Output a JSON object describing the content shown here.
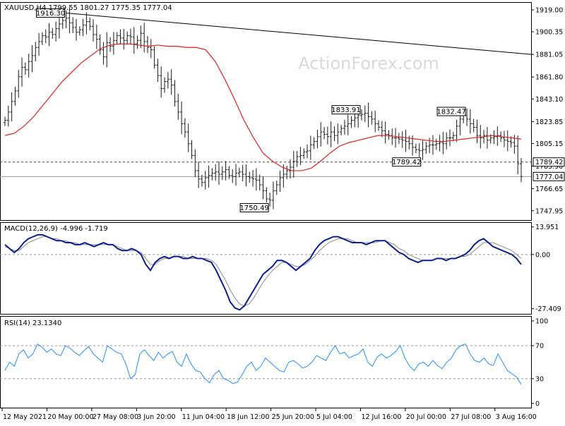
{
  "watermark": "ActionForex.com",
  "colors": {
    "price_bars": "#1a1a1a",
    "sma": "#e02020",
    "macd_line": "#0a1f8f",
    "macd_signal": "#8a8a8a",
    "rsi_line": "#1e90ff",
    "trendline": "#000000",
    "dashed": "#444444",
    "hline": "#9a9a9a",
    "frame": "#000000",
    "grid_dashed": "#999999",
    "watermark": "#d9d9d9"
  },
  "chart_data": [
    {
      "type": "ohlc",
      "panel": "price",
      "title": "XAUUSD,H4  1799.55 1801.27 1775.35 1777.04",
      "symbol": "XAUUSD",
      "timeframe": "H4",
      "last_ohlc": [
        1799.55,
        1801.27,
        1775.35,
        1777.04
      ],
      "ylim": [
        1740.0,
        1925.0
      ],
      "yticks": [
        1919.0,
        1900.35,
        1881.05,
        1861.8,
        1843.1,
        1823.85,
        1805.15,
        1785.9,
        1766.65,
        1747.95
      ],
      "ytick_labels": [
        "1919.00",
        "1900.35",
        "1881.05",
        "1861.80",
        "1843.10",
        "1823.85",
        "1805.15",
        "1785.90",
        "1766.65",
        "1747.95"
      ],
      "x_labels": [
        "12 May 2021",
        "20 May 00:00",
        "27 May 08:00",
        "3 Jun 20:00",
        "11 Jun 04:00",
        "18 Jun 12:00",
        "25 Jun 20:00",
        "5 Jul 04:00",
        "12 Jul 16:00",
        "20 Jul 00:00",
        "27 Jul 08:00",
        "3 Aug 16:00"
      ],
      "closes": [
        1825,
        1832,
        1841,
        1850,
        1862,
        1870,
        1868,
        1875,
        1880,
        1887,
        1892,
        1897,
        1896,
        1900,
        1898,
        1903,
        1907,
        1910,
        1912,
        1908,
        1904,
        1900,
        1902,
        1906,
        1909,
        1905,
        1898,
        1894,
        1885,
        1879,
        1891,
        1888,
        1893,
        1897,
        1895,
        1893,
        1897,
        1896,
        1890,
        1893,
        1899,
        1892,
        1887,
        1885,
        1872,
        1863,
        1852,
        1858,
        1860,
        1855,
        1841,
        1832,
        1822,
        1815,
        1805,
        1795,
        1782,
        1775,
        1772,
        1776,
        1778,
        1780,
        1781,
        1779,
        1781,
        1783,
        1778,
        1777,
        1780,
        1781,
        1779,
        1777,
        1776,
        1775,
        1774,
        1770,
        1765,
        1758,
        1757,
        1765,
        1770,
        1776,
        1779,
        1782,
        1785,
        1790,
        1794,
        1795,
        1798,
        1799,
        1804,
        1807,
        1811,
        1815,
        1813,
        1811,
        1815,
        1812,
        1815,
        1818,
        1820,
        1822,
        1825,
        1827,
        1829,
        1830,
        1831,
        1828,
        1826,
        1822,
        1819,
        1816,
        1813,
        1812,
        1810,
        1810,
        1809,
        1808,
        1807,
        1805,
        1802,
        1800,
        1799,
        1800,
        1803,
        1804,
        1804,
        1805,
        1806,
        1805,
        1810,
        1810,
        1812,
        1820,
        1826,
        1829,
        1826,
        1822,
        1819,
        1812,
        1810,
        1812,
        1808,
        1810,
        1811,
        1812,
        1810,
        1808,
        1807,
        1806,
        1803,
        1788,
        1777.04
      ],
      "sma_period": 100,
      "sma": [
        1812,
        1814,
        1820,
        1828,
        1838,
        1848,
        1858,
        1866,
        1874,
        1880,
        1886,
        1889,
        1890,
        1890,
        1889,
        1888,
        1889,
        1888,
        1888,
        1887,
        1887,
        1885,
        1875,
        1860,
        1843,
        1825,
        1810,
        1797,
        1790,
        1785,
        1782,
        1782,
        1784,
        1790,
        1797,
        1803,
        1806,
        1808,
        1810,
        1812,
        1812,
        1811,
        1810,
        1809,
        1808,
        1807,
        1807,
        1808,
        1809,
        1810,
        1811,
        1812,
        1811,
        1810,
        1809
      ],
      "annotations": [
        {
          "label": "1916.30",
          "x_index": 18,
          "value": 1916.3,
          "position": "left"
        },
        {
          "label": "1750.49",
          "x_index": 78,
          "value": 1750.49,
          "position": "left"
        },
        {
          "label": "1833.91",
          "x_index": 105,
          "value": 1833.91,
          "position": "left"
        },
        {
          "label": "1789.42",
          "x_index": 122,
          "value": 1789.42,
          "position": "right"
        },
        {
          "label": "1832.47",
          "x_index": 136,
          "value": 1832.47,
          "position": "left"
        }
      ],
      "trendline": {
        "from_value": 1916.3,
        "to_value": 1881.05
      },
      "dashed_level": {
        "value": 1789.42,
        "label": "1789.42"
      },
      "current_level": {
        "value": 1777.04,
        "label": "1777.04"
      }
    },
    {
      "type": "line",
      "panel": "macd",
      "title": "MACD(12,26,9) -4.996 -1.719",
      "ylim": [
        -30.0,
        16.0
      ],
      "yticks": [
        13.951,
        0.0,
        -27.409
      ],
      "ytick_labels": [
        "13.951",
        "0.00",
        "-27.409"
      ],
      "series": [
        {
          "name": "MACD",
          "values": [
            5,
            3,
            1,
            3,
            6,
            8,
            9,
            10,
            10,
            9,
            8,
            7,
            7,
            6,
            6,
            5,
            5,
            6,
            5,
            4,
            5,
            6,
            5,
            5,
            3,
            2,
            2,
            3,
            2,
            0,
            -5,
            -8,
            -4,
            -2,
            -1,
            -2,
            -1,
            -1,
            -2,
            -2,
            -1,
            -2,
            -2,
            -3,
            -4,
            -8,
            -13,
            -18,
            -24,
            -27,
            -28,
            -26,
            -22,
            -18,
            -14,
            -10,
            -8,
            -6,
            -3,
            -3,
            -4,
            -6,
            -8,
            -6,
            -4,
            -2,
            2,
            5,
            7,
            8,
            9,
            9,
            8,
            7,
            6,
            6,
            6,
            5,
            6,
            7,
            7,
            7,
            5,
            3,
            1,
            0,
            -2,
            -3,
            -4,
            -3,
            -3,
            -3,
            -2,
            -2,
            -3,
            -2,
            -2,
            -1,
            0,
            2,
            5,
            7,
            8,
            6,
            4,
            3,
            2,
            1,
            0,
            -2,
            -5
          ]
        },
        {
          "name": "Signal",
          "values": [
            4,
            3,
            2,
            2,
            4,
            6,
            7,
            8,
            9,
            9,
            8,
            8,
            7,
            7,
            6,
            6,
            5,
            5,
            5,
            5,
            5,
            5,
            5,
            5,
            4,
            3,
            2,
            2,
            2,
            1,
            -2,
            -5,
            -5,
            -3,
            -2,
            -2,
            -1,
            -1,
            -1,
            -2,
            -2,
            -2,
            -2,
            -2,
            -3,
            -5,
            -9,
            -13,
            -18,
            -22,
            -25,
            -26,
            -25,
            -22,
            -18,
            -14,
            -11,
            -8,
            -6,
            -4,
            -4,
            -5,
            -6,
            -6,
            -5,
            -3,
            -1,
            2,
            4,
            6,
            7,
            8,
            8,
            8,
            7,
            6,
            6,
            6,
            6,
            6,
            7,
            7,
            6,
            5,
            3,
            2,
            0,
            -1,
            -2,
            -3,
            -3,
            -3,
            -2,
            -2,
            -2,
            -2,
            -2,
            -1,
            -1,
            0,
            2,
            4,
            6,
            6,
            6,
            5,
            4,
            3,
            2,
            0,
            -2
          ]
        }
      ]
    },
    {
      "type": "line",
      "panel": "rsi",
      "title": "RSI(14) 23.1340",
      "ylim": [
        0,
        100
      ],
      "yticks": [
        100,
        70,
        30,
        0
      ],
      "ytick_labels": [
        "100",
        "70",
        "30",
        "0"
      ],
      "levels": [
        70,
        30
      ],
      "series": [
        {
          "name": "RSI",
          "values": [
            40,
            50,
            45,
            60,
            65,
            55,
            60,
            72,
            68,
            62,
            66,
            60,
            58,
            70,
            67,
            62,
            58,
            64,
            69,
            60,
            55,
            50,
            70,
            66,
            62,
            60,
            48,
            30,
            35,
            60,
            65,
            58,
            52,
            62,
            55,
            60,
            63,
            50,
            45,
            60,
            48,
            40,
            38,
            30,
            25,
            35,
            40,
            30,
            28,
            24,
            26,
            35,
            45,
            50,
            40,
            45,
            55,
            50,
            45,
            40,
            38,
            50,
            52,
            48,
            43,
            45,
            50,
            58,
            55,
            52,
            62,
            70,
            60,
            62,
            55,
            58,
            60,
            66,
            50,
            45,
            56,
            60,
            55,
            58,
            63,
            70,
            55,
            45,
            40,
            48,
            50,
            45,
            52,
            46,
            42,
            50,
            55,
            65,
            70,
            72,
            60,
            52,
            50,
            55,
            48,
            46,
            60,
            50,
            40,
            36,
            32,
            23.13
          ]
        }
      ]
    }
  ]
}
